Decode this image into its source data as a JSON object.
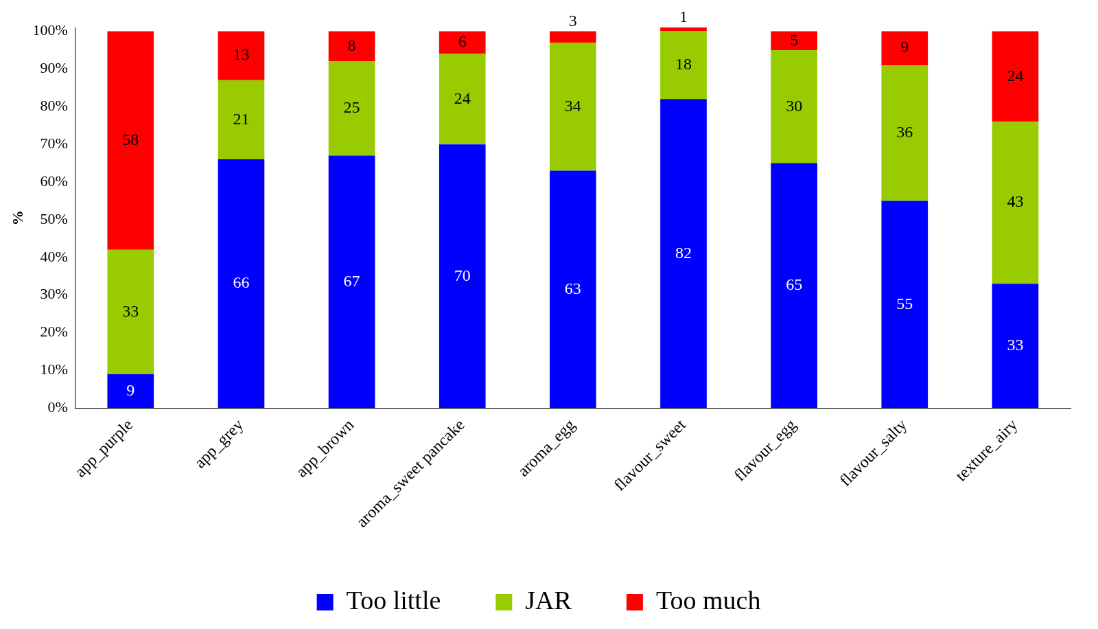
{
  "chart_data": {
    "type": "bar",
    "stacked": true,
    "ylabel": "%",
    "categories": [
      "app_purple",
      "app_grey",
      "app_brown",
      "aroma_sweet pancake",
      "aroma_egg",
      "flavour_sweet",
      "flavour_egg",
      "flavour_salty",
      "texture_airy"
    ],
    "series": [
      {
        "name": "Too little",
        "color": "#0000ff",
        "values": [
          9,
          66,
          67,
          70,
          63,
          82,
          65,
          55,
          33
        ]
      },
      {
        "name": "JAR",
        "color": "#99cc00",
        "values": [
          33,
          21,
          25,
          24,
          34,
          18,
          30,
          36,
          43
        ]
      },
      {
        "name": "Too much",
        "color": "#ff0000",
        "values": [
          58,
          13,
          8,
          6,
          3,
          1,
          5,
          9,
          24
        ]
      }
    ],
    "ylim": [
      0,
      101
    ],
    "yticks": [
      {
        "value": 0,
        "label": "0%"
      },
      {
        "value": 10,
        "label": "10%"
      },
      {
        "value": 20,
        "label": "20%"
      },
      {
        "value": 30,
        "label": "30%"
      },
      {
        "value": 40,
        "label": "40%"
      },
      {
        "value": 50,
        "label": "50%"
      },
      {
        "value": 60,
        "label": "60%"
      },
      {
        "value": 70,
        "label": "70%"
      },
      {
        "value": 80,
        "label": "80%"
      },
      {
        "value": 90,
        "label": "90%"
      },
      {
        "value": 100,
        "label": "100%"
      }
    ],
    "grid": false,
    "legend": "bottom",
    "data_labels": true
  }
}
